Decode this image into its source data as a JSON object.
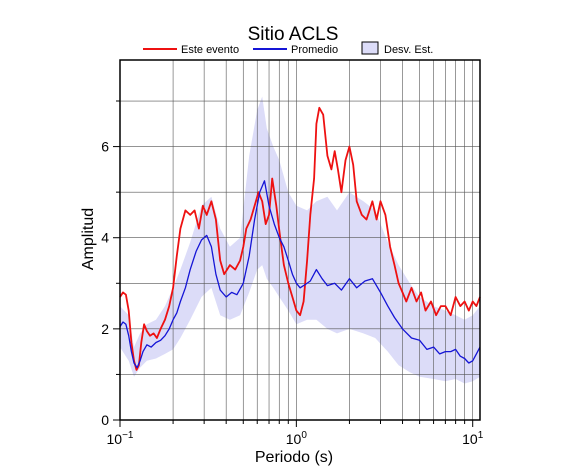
{
  "chart_data": {
    "type": "line",
    "title": "Sitio ACLS",
    "xlabel": "Periodo (s)",
    "ylabel": "Amplitud",
    "xscale": "log",
    "xlim": [
      0.1,
      11
    ],
    "ylim": [
      0,
      7.9
    ],
    "grid": true,
    "legend_position": "top",
    "x_tick_labels": [
      {
        "base": "10",
        "exp": "−1",
        "value": 0.1
      },
      {
        "base": "10",
        "exp": "0",
        "value": 1
      },
      {
        "base": "10",
        "exp": "1",
        "value": 10
      }
    ],
    "y_ticks": [
      0,
      2,
      4,
      6
    ],
    "y_tick_labels": [
      "0",
      "2",
      "4",
      "6"
    ],
    "series": [
      {
        "name": "Este evento",
        "color": "#ee1111",
        "points": [
          [
            0.1,
            2.7
          ],
          [
            0.104,
            2.8
          ],
          [
            0.108,
            2.75
          ],
          [
            0.112,
            2.4
          ],
          [
            0.116,
            1.7
          ],
          [
            0.12,
            1.3
          ],
          [
            0.124,
            1.1
          ],
          [
            0.128,
            1.2
          ],
          [
            0.132,
            1.7
          ],
          [
            0.137,
            2.1
          ],
          [
            0.142,
            1.95
          ],
          [
            0.148,
            1.85
          ],
          [
            0.155,
            1.9
          ],
          [
            0.162,
            1.8
          ],
          [
            0.17,
            2.0
          ],
          [
            0.18,
            2.2
          ],
          [
            0.19,
            2.5
          ],
          [
            0.2,
            2.9
          ],
          [
            0.21,
            3.6
          ],
          [
            0.22,
            4.2
          ],
          [
            0.235,
            4.6
          ],
          [
            0.25,
            4.5
          ],
          [
            0.265,
            4.6
          ],
          [
            0.28,
            4.2
          ],
          [
            0.295,
            4.7
          ],
          [
            0.31,
            4.5
          ],
          [
            0.33,
            4.8
          ],
          [
            0.35,
            4.4
          ],
          [
            0.37,
            3.5
          ],
          [
            0.39,
            3.2
          ],
          [
            0.42,
            3.4
          ],
          [
            0.45,
            3.3
          ],
          [
            0.48,
            3.5
          ],
          [
            0.5,
            3.8
          ],
          [
            0.52,
            4.2
          ],
          [
            0.55,
            4.4
          ],
          [
            0.58,
            4.7
          ],
          [
            0.61,
            5.0
          ],
          [
            0.64,
            4.8
          ],
          [
            0.67,
            4.3
          ],
          [
            0.7,
            4.5
          ],
          [
            0.73,
            5.3
          ],
          [
            0.77,
            4.7
          ],
          [
            0.81,
            4.0
          ],
          [
            0.85,
            3.4
          ],
          [
            0.9,
            3.0
          ],
          [
            0.95,
            2.7
          ],
          [
            1.0,
            2.4
          ],
          [
            1.05,
            2.3
          ],
          [
            1.1,
            2.6
          ],
          [
            1.15,
            3.5
          ],
          [
            1.2,
            4.5
          ],
          [
            1.26,
            5.3
          ],
          [
            1.3,
            6.5
          ],
          [
            1.35,
            6.85
          ],
          [
            1.42,
            6.7
          ],
          [
            1.5,
            5.8
          ],
          [
            1.58,
            5.5
          ],
          [
            1.65,
            5.9
          ],
          [
            1.72,
            5.5
          ],
          [
            1.8,
            5.0
          ],
          [
            1.9,
            5.7
          ],
          [
            2.0,
            6.0
          ],
          [
            2.1,
            5.6
          ],
          [
            2.2,
            4.8
          ],
          [
            2.35,
            4.5
          ],
          [
            2.5,
            4.4
          ],
          [
            2.6,
            4.6
          ],
          [
            2.7,
            4.8
          ],
          [
            2.85,
            4.4
          ],
          [
            3.0,
            4.8
          ],
          [
            3.2,
            4.5
          ],
          [
            3.4,
            3.8
          ],
          [
            3.6,
            3.4
          ],
          [
            3.8,
            3.0
          ],
          [
            4.0,
            2.8
          ],
          [
            4.2,
            2.6
          ],
          [
            4.5,
            2.9
          ],
          [
            4.8,
            2.6
          ],
          [
            5.1,
            2.8
          ],
          [
            5.4,
            2.4
          ],
          [
            5.8,
            2.6
          ],
          [
            6.2,
            2.3
          ],
          [
            6.6,
            2.5
          ],
          [
            7.0,
            2.5
          ],
          [
            7.5,
            2.3
          ],
          [
            8.0,
            2.7
          ],
          [
            8.5,
            2.5
          ],
          [
            9.0,
            2.6
          ],
          [
            9.5,
            2.4
          ],
          [
            10.0,
            2.6
          ],
          [
            10.5,
            2.5
          ],
          [
            11.0,
            2.7
          ]
        ]
      },
      {
        "name": "Promedio",
        "color": "#1515d6",
        "points": [
          [
            0.1,
            2.05
          ],
          [
            0.104,
            2.15
          ],
          [
            0.108,
            2.1
          ],
          [
            0.112,
            1.85
          ],
          [
            0.116,
            1.5
          ],
          [
            0.12,
            1.25
          ],
          [
            0.125,
            1.15
          ],
          [
            0.13,
            1.3
          ],
          [
            0.135,
            1.5
          ],
          [
            0.142,
            1.65
          ],
          [
            0.15,
            1.6
          ],
          [
            0.16,
            1.7
          ],
          [
            0.17,
            1.75
          ],
          [
            0.18,
            1.85
          ],
          [
            0.19,
            2.0
          ],
          [
            0.2,
            2.2
          ],
          [
            0.21,
            2.35
          ],
          [
            0.22,
            2.6
          ],
          [
            0.235,
            2.9
          ],
          [
            0.25,
            3.3
          ],
          [
            0.27,
            3.7
          ],
          [
            0.29,
            3.95
          ],
          [
            0.31,
            4.05
          ],
          [
            0.33,
            3.8
          ],
          [
            0.35,
            3.2
          ],
          [
            0.37,
            2.85
          ],
          [
            0.4,
            2.7
          ],
          [
            0.43,
            2.8
          ],
          [
            0.46,
            2.75
          ],
          [
            0.5,
            3.0
          ],
          [
            0.54,
            3.6
          ],
          [
            0.58,
            4.4
          ],
          [
            0.62,
            5.0
          ],
          [
            0.66,
            5.25
          ],
          [
            0.7,
            4.7
          ],
          [
            0.75,
            4.3
          ],
          [
            0.8,
            4.0
          ],
          [
            0.85,
            3.8
          ],
          [
            0.9,
            3.5
          ],
          [
            0.95,
            3.2
          ],
          [
            1.0,
            3.0
          ],
          [
            1.05,
            2.9
          ],
          [
            1.1,
            2.95
          ],
          [
            1.2,
            3.05
          ],
          [
            1.3,
            3.3
          ],
          [
            1.4,
            3.1
          ],
          [
            1.5,
            2.95
          ],
          [
            1.65,
            3.0
          ],
          [
            1.8,
            2.85
          ],
          [
            2.0,
            3.1
          ],
          [
            2.2,
            2.9
          ],
          [
            2.45,
            3.05
          ],
          [
            2.7,
            3.1
          ],
          [
            3.0,
            2.8
          ],
          [
            3.3,
            2.5
          ],
          [
            3.6,
            2.25
          ],
          [
            4.0,
            2.0
          ],
          [
            4.5,
            1.8
          ],
          [
            5.0,
            1.75
          ],
          [
            5.5,
            1.55
          ],
          [
            6.0,
            1.6
          ],
          [
            6.5,
            1.45
          ],
          [
            7.0,
            1.5
          ],
          [
            7.5,
            1.5
          ],
          [
            8.0,
            1.55
          ],
          [
            8.5,
            1.4
          ],
          [
            9.0,
            1.35
          ],
          [
            9.5,
            1.25
          ],
          [
            10.0,
            1.3
          ],
          [
            10.5,
            1.45
          ],
          [
            11.0,
            1.6
          ]
        ]
      }
    ],
    "band": {
      "name": "Desv. Est.",
      "color": "#dcdcf8",
      "x": [
        0.1,
        0.112,
        0.12,
        0.13,
        0.142,
        0.16,
        0.18,
        0.2,
        0.22,
        0.25,
        0.29,
        0.33,
        0.37,
        0.42,
        0.48,
        0.54,
        0.6,
        0.64,
        0.68,
        0.74,
        0.8,
        0.9,
        1.0,
        1.15,
        1.3,
        1.5,
        1.7,
        2.0,
        2.4,
        2.8,
        3.3,
        3.8,
        4.4,
        5.0,
        6.0,
        7.0,
        8.0,
        9.0,
        10.0,
        11.0
      ],
      "upper": [
        2.5,
        2.3,
        1.6,
        1.9,
        2.1,
        2.2,
        2.5,
        2.9,
        3.3,
        3.9,
        4.7,
        4.9,
        4.2,
        3.8,
        4.0,
        5.8,
        6.8,
        7.1,
        6.4,
        6.0,
        5.7,
        5.0,
        4.7,
        4.6,
        4.8,
        4.9,
        4.6,
        5.0,
        4.8,
        4.6,
        3.9,
        3.4,
        3.0,
        2.7,
        2.5,
        2.4,
        2.3,
        2.2,
        2.3,
        2.5
      ],
      "lower": [
        1.6,
        1.3,
        0.95,
        1.15,
        1.3,
        1.35,
        1.45,
        1.55,
        1.8,
        2.2,
        2.7,
        2.9,
        2.3,
        2.2,
        2.3,
        2.8,
        3.3,
        3.4,
        3.1,
        2.9,
        2.7,
        2.4,
        2.1,
        2.2,
        2.2,
        2.0,
        1.9,
        2.0,
        1.9,
        1.8,
        1.5,
        1.2,
        1.05,
        0.95,
        0.9,
        0.85,
        0.9,
        0.8,
        0.85,
        0.95
      ]
    }
  }
}
